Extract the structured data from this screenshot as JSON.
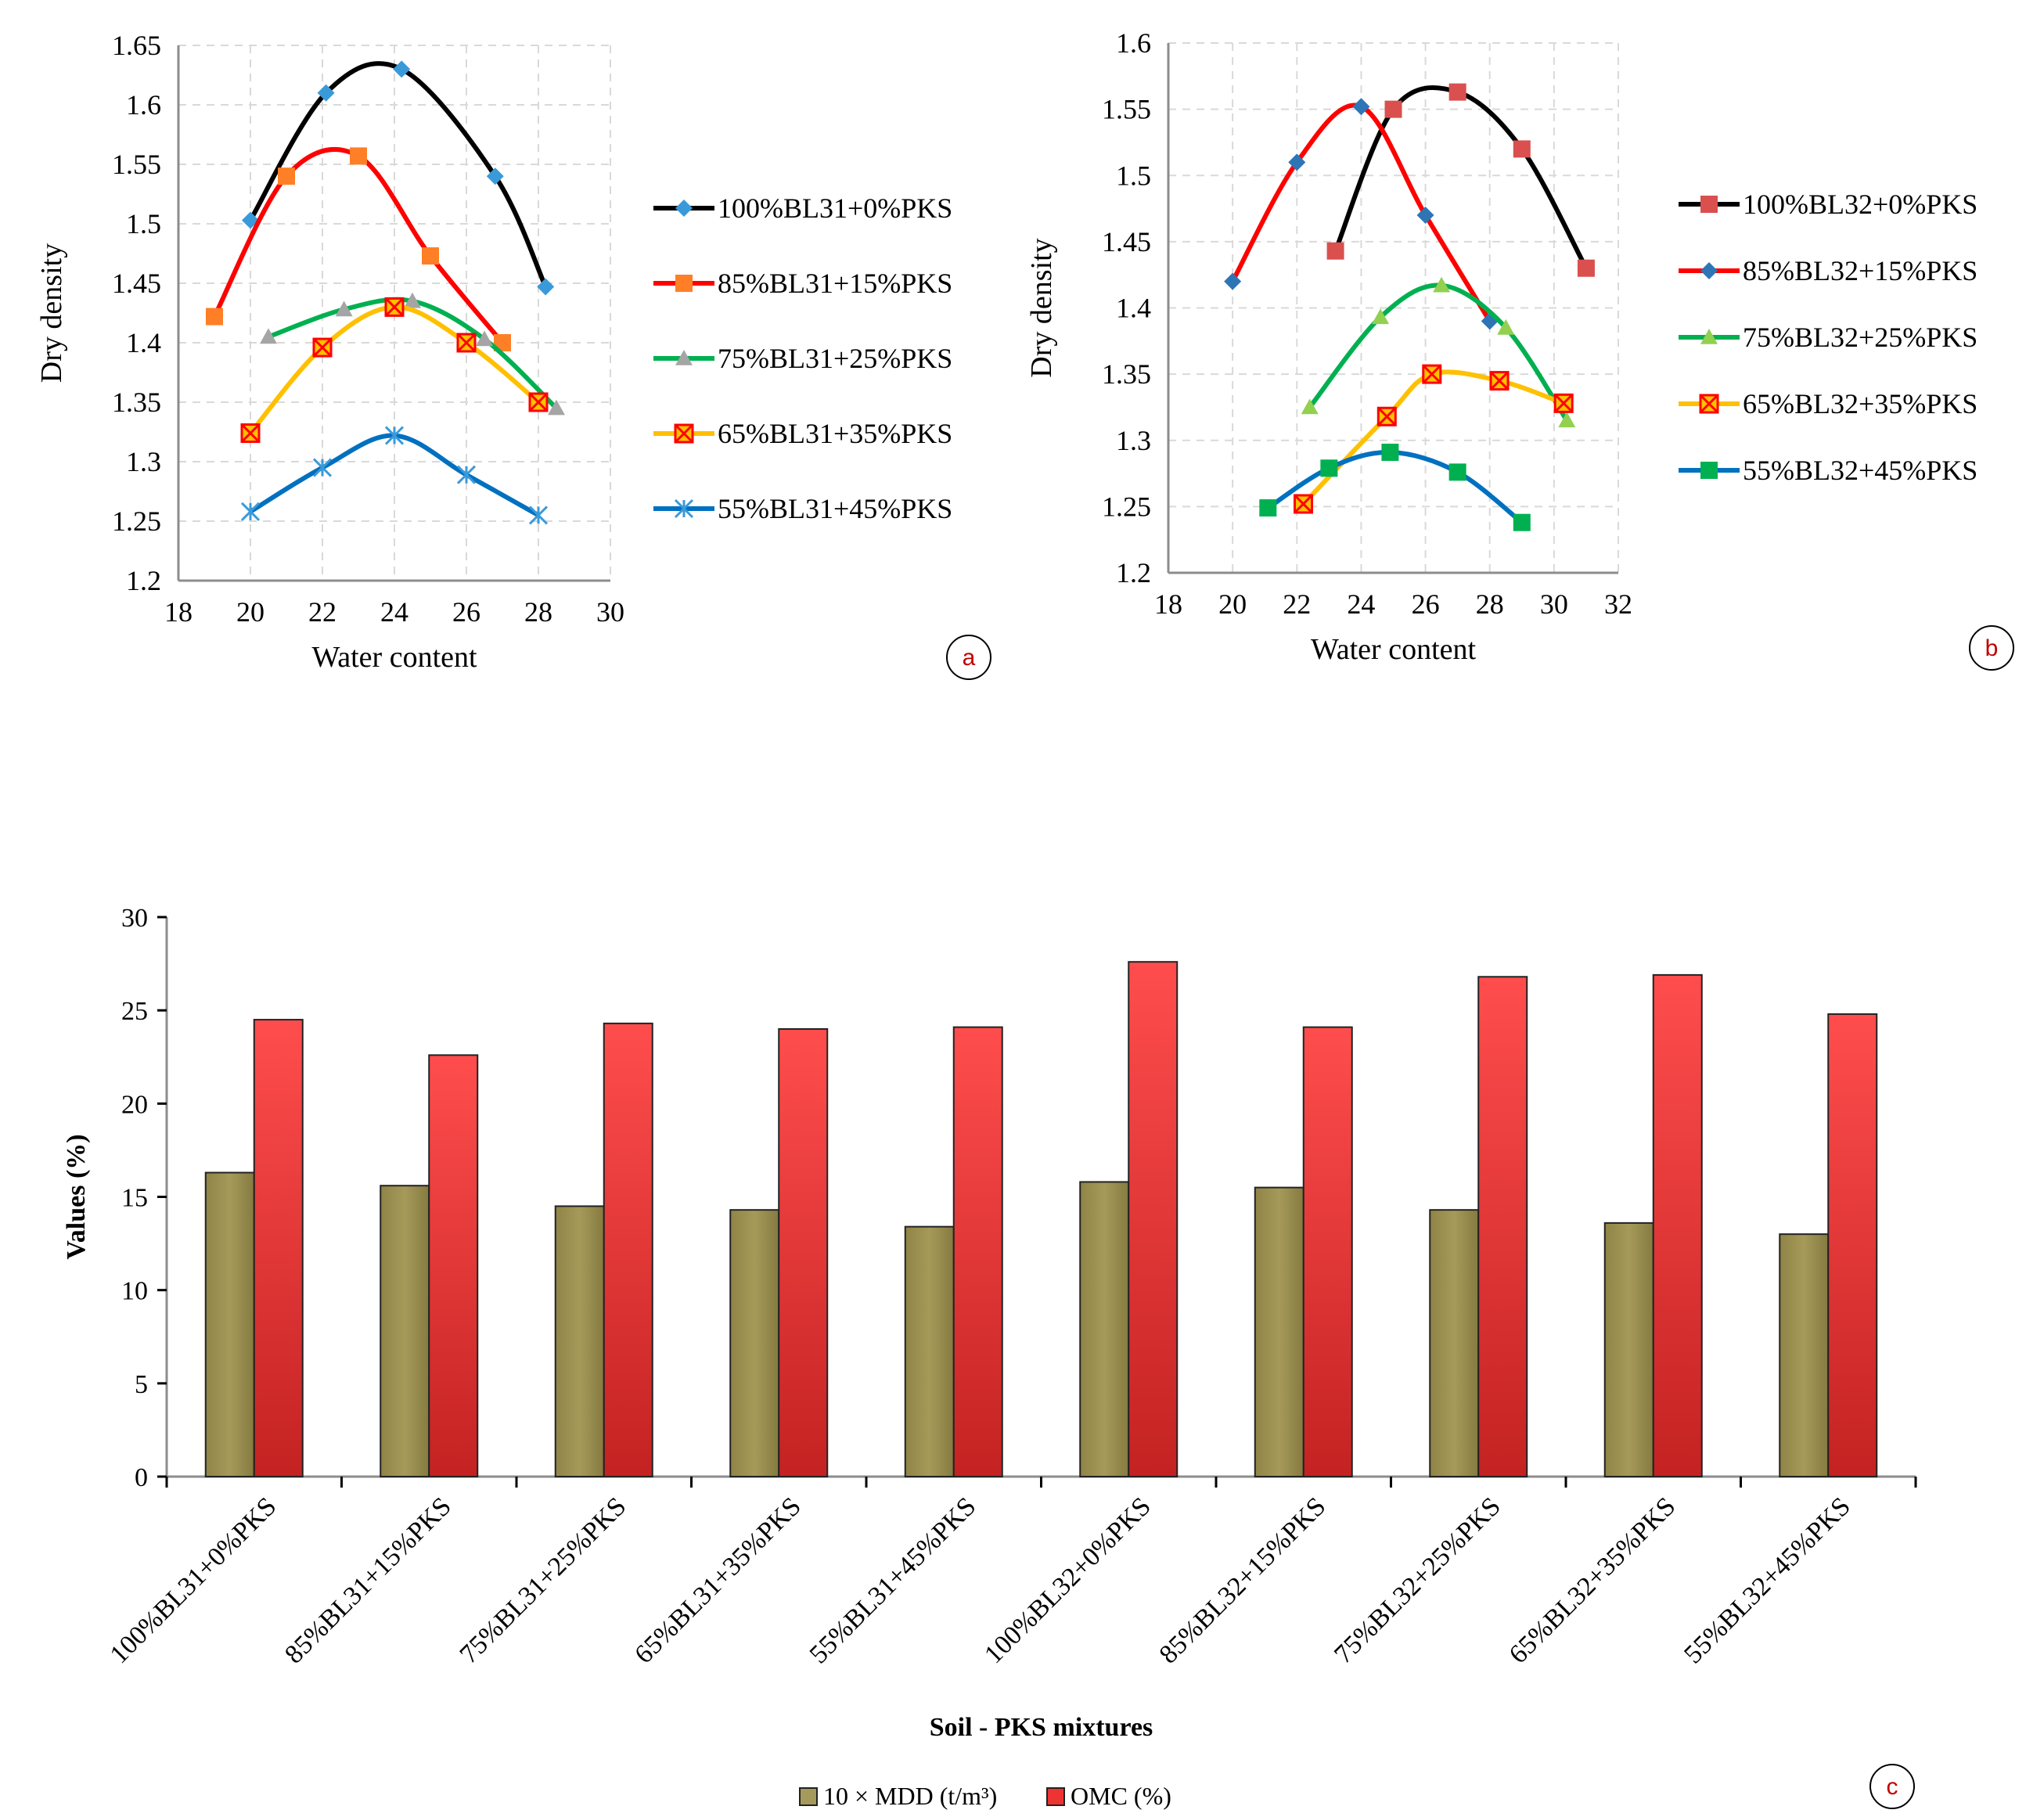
{
  "chart_data": [
    {
      "id": "a",
      "type": "line",
      "panel_label": "a",
      "xlabel": "Water content",
      "ylabel": "Dry density",
      "xlim": [
        18,
        30
      ],
      "ylim": [
        1.2,
        1.65
      ],
      "xticks": [
        "18",
        "20",
        "22",
        "24",
        "26",
        "28",
        "30"
      ],
      "yticks": [
        "1.2",
        "1.25",
        "1.3",
        "1.35",
        "1.4",
        "1.45",
        "1.5",
        "1.55",
        "1.6",
        "1.65"
      ],
      "series": [
        {
          "name": "100%BL31+0%PKS",
          "color": "#000000",
          "marker_color": "#3a9ad9",
          "marker": "diamond",
          "x": [
            20,
            22.1,
            24.2,
            26.8,
            28.2
          ],
          "y": [
            1.503,
            1.61,
            1.63,
            1.54,
            1.447
          ]
        },
        {
          "name": "85%BL31+15%PKS",
          "color": "#ff0000",
          "marker_color": "#ff7f27",
          "marker": "square",
          "x": [
            19,
            21,
            23,
            25,
            27
          ],
          "y": [
            1.422,
            1.54,
            1.557,
            1.473,
            1.4
          ]
        },
        {
          "name": "75%BL31+25%PKS",
          "color": "#00b050",
          "marker_color": "#a5a5a5",
          "marker": "triangle",
          "x": [
            20.5,
            22.6,
            24.5,
            26.5,
            28.5
          ],
          "y": [
            1.405,
            1.428,
            1.435,
            1.403,
            1.345
          ]
        },
        {
          "name": "65%BL31+35%PKS",
          "color": "#ffc000",
          "marker_color": "#ff0000",
          "marker": "xsquare",
          "x": [
            20,
            22,
            24,
            26,
            28
          ],
          "y": [
            1.324,
            1.396,
            1.43,
            1.4,
            1.35
          ]
        },
        {
          "name": "55%BL31+45%PKS",
          "color": "#0070c0",
          "marker_color": "#3a9ad9",
          "marker": "star",
          "x": [
            20,
            22,
            24,
            26,
            28
          ],
          "y": [
            1.258,
            1.295,
            1.322,
            1.289,
            1.255
          ]
        }
      ]
    },
    {
      "id": "b",
      "type": "line",
      "panel_label": "b",
      "xlabel": "Water content",
      "ylabel": "Dry density",
      "xlim": [
        18,
        32
      ],
      "ylim": [
        1.2,
        1.6
      ],
      "xticks": [
        "18",
        "20",
        "22",
        "24",
        "26",
        "28",
        "30",
        "32"
      ],
      "yticks": [
        "1.2",
        "1.25",
        "1.3",
        "1.35",
        "1.4",
        "1.45",
        "1.5",
        "1.55",
        "1.6"
      ],
      "series": [
        {
          "name": "100%BL32+0%PKS",
          "color": "#000000",
          "marker_color": "#d9504f",
          "marker": "square",
          "x": [
            23.2,
            25,
            27,
            29,
            31
          ],
          "y": [
            1.443,
            1.55,
            1.563,
            1.52,
            1.43
          ]
        },
        {
          "name": "85%BL32+15%PKS",
          "color": "#ff0000",
          "marker_color": "#2e75b6",
          "marker": "diamond",
          "x": [
            20,
            22,
            24,
            26,
            28
          ],
          "y": [
            1.42,
            1.51,
            1.552,
            1.47,
            1.39
          ]
        },
        {
          "name": "75%BL32+25%PKS",
          "color": "#00b050",
          "marker_color": "#92d050",
          "marker": "triangle",
          "x": [
            22.4,
            24.6,
            26.5,
            28.5,
            30.4
          ],
          "y": [
            1.325,
            1.393,
            1.417,
            1.385,
            1.315
          ]
        },
        {
          "name": "65%BL32+35%PKS",
          "color": "#ffc000",
          "marker_color": "#ff0000",
          "marker": "xsquare",
          "x": [
            22.2,
            24.8,
            26.2,
            28.3,
            30.3
          ],
          "y": [
            1.252,
            1.318,
            1.35,
            1.345,
            1.328
          ]
        },
        {
          "name": "55%BL32+45%PKS",
          "color": "#0070c0",
          "marker_color": "#00b050",
          "marker": "square",
          "x": [
            21.1,
            23,
            24.9,
            27,
            29
          ],
          "y": [
            1.249,
            1.279,
            1.291,
            1.276,
            1.238
          ]
        }
      ]
    },
    {
      "id": "c",
      "type": "bar",
      "panel_label": "c",
      "xlabel": "Soil - PKS mixtures",
      "ylabel": "Values (%)",
      "ylim": [
        0,
        30
      ],
      "yticks": [
        "0",
        "5",
        "10",
        "15",
        "20",
        "25",
        "30"
      ],
      "categories": [
        "100%BL31+0%PKS",
        "85%BL31+15%PKS",
        "75%BL31+25%PKS",
        "65%BL31+35%PKS",
        "55%BL31+45%PKS",
        "100%BL32+0%PKS",
        "85%BL32+15%PKS",
        "75%BL32+25%PKS",
        "65%BL32+35%PKS",
        "55%BL32+45%PKS"
      ],
      "series": [
        {
          "name": "10 × MDD (t/m³)",
          "color": "#a69a5a",
          "values": [
            16.3,
            15.6,
            14.5,
            14.3,
            13.4,
            15.8,
            15.5,
            14.3,
            13.6,
            13.0
          ]
        },
        {
          "name": "OMC (%)",
          "color": "#ee3333",
          "values": [
            24.5,
            22.6,
            24.3,
            24.0,
            24.1,
            27.6,
            24.1,
            26.8,
            26.9,
            24.8
          ]
        }
      ]
    }
  ]
}
